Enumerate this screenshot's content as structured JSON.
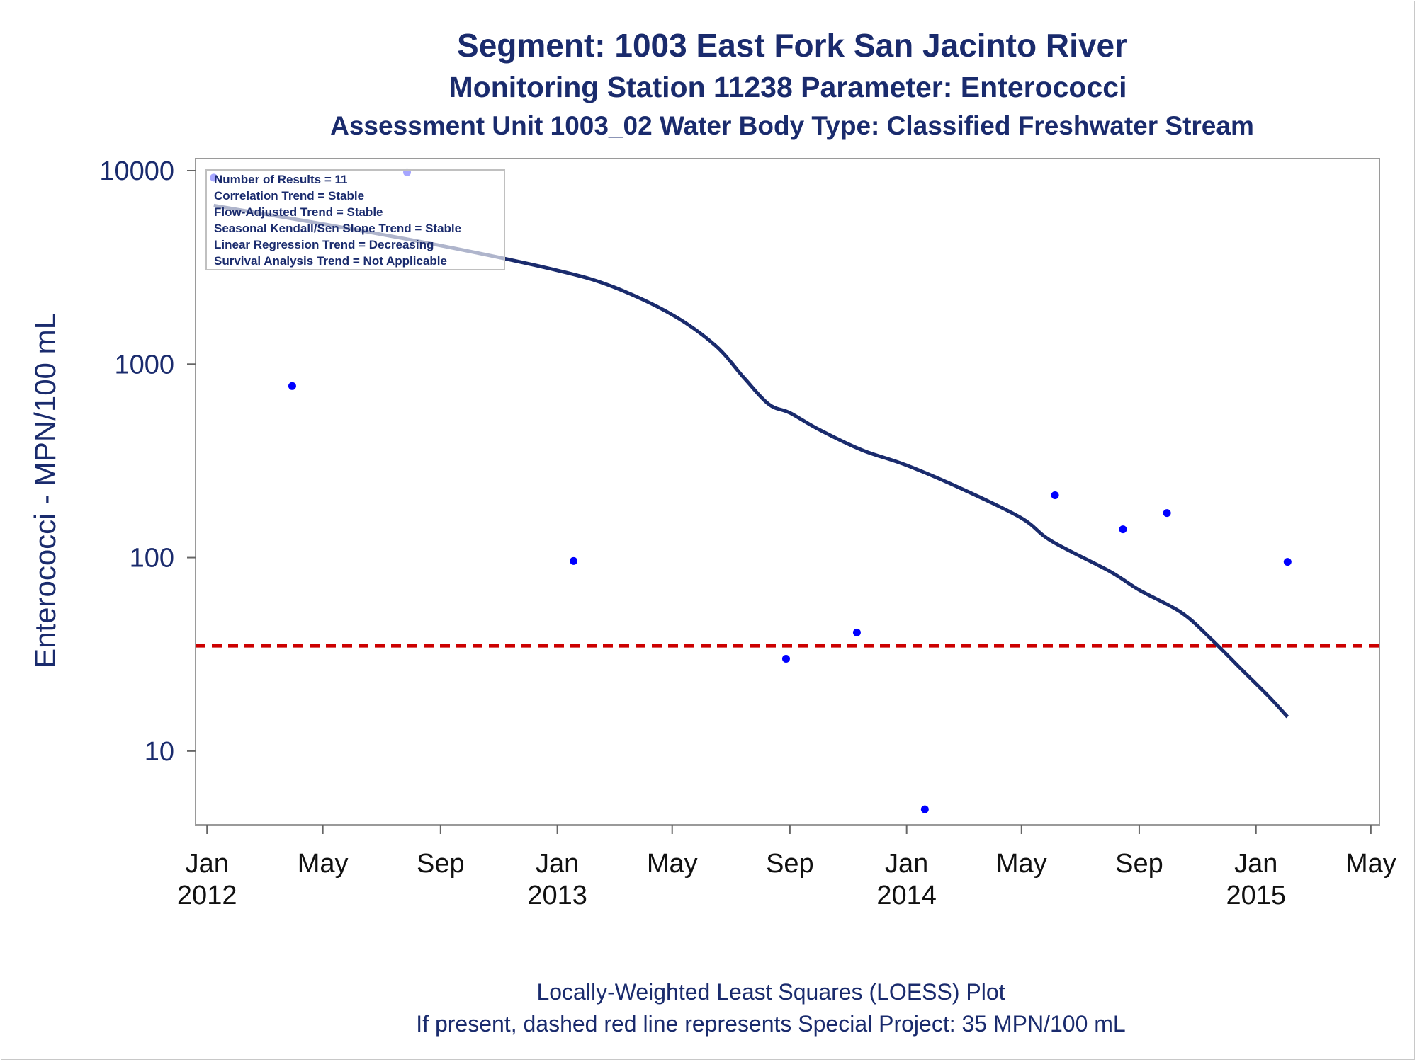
{
  "chart_data": {
    "type": "scatter",
    "title": "Segment: 1003  East Fork San Jacinto River",
    "subtitle": "Monitoring Station 11238 Parameter: Enterococci",
    "subtitle2": "Assessment Unit 1003_02   Water Body Type: Classified Freshwater Stream",
    "ylabel": "Enterococci - MPN/100 mL",
    "y_scale": "log",
    "ylim": [
      4.6,
      10000
    ],
    "y_ticks": [
      10,
      100,
      1000,
      10000
    ],
    "y_tick_labels": [
      "10",
      "100",
      "1000",
      "10000"
    ],
    "xlim": [
      "2011-12-20",
      "2015-05-10"
    ],
    "x_ticks": [
      {
        "date": "2012-01-01",
        "label": "Jan",
        "year": "2012"
      },
      {
        "date": "2012-05-01",
        "label": "May",
        "year": ""
      },
      {
        "date": "2012-09-01",
        "label": "Sep",
        "year": ""
      },
      {
        "date": "2013-01-01",
        "label": "Jan",
        "year": "2013"
      },
      {
        "date": "2013-05-01",
        "label": "May",
        "year": ""
      },
      {
        "date": "2013-09-01",
        "label": "Sep",
        "year": ""
      },
      {
        "date": "2014-01-01",
        "label": "Jan",
        "year": "2014"
      },
      {
        "date": "2014-05-01",
        "label": "May",
        "year": ""
      },
      {
        "date": "2014-09-01",
        "label": "Sep",
        "year": ""
      },
      {
        "date": "2015-01-01",
        "label": "Jan",
        "year": "2015"
      },
      {
        "date": "2015-05-01",
        "label": "May",
        "year": ""
      }
    ],
    "grid": false,
    "series": [
      {
        "kind": "points",
        "color": "#0000ff",
        "points": [
          {
            "x": "2012-01-08",
            "y": 9200
          },
          {
            "x": "2012-03-30",
            "y": 770
          },
          {
            "x": "2012-07-28",
            "y": 9800
          },
          {
            "x": "2013-01-18",
            "y": 96
          },
          {
            "x": "2013-08-28",
            "y": 30
          },
          {
            "x": "2013-11-10",
            "y": 41
          },
          {
            "x": "2014-01-20",
            "y": 5
          },
          {
            "x": "2014-06-05",
            "y": 210
          },
          {
            "x": "2014-08-15",
            "y": 140
          },
          {
            "x": "2014-09-30",
            "y": 170
          },
          {
            "x": "2015-02-03",
            "y": 95
          }
        ]
      },
      {
        "kind": "loess",
        "color": "#1a2b6d",
        "points": [
          {
            "x": "2012-01-08",
            "y": 6600
          },
          {
            "x": "2012-05-01",
            "y": 5300
          },
          {
            "x": "2012-09-01",
            "y": 4100
          },
          {
            "x": "2013-01-01",
            "y": 3050
          },
          {
            "x": "2013-03-01",
            "y": 2500
          },
          {
            "x": "2013-05-01",
            "y": 1800
          },
          {
            "x": "2013-06-15",
            "y": 1250
          },
          {
            "x": "2013-07-15",
            "y": 850
          },
          {
            "x": "2013-08-10",
            "y": 620
          },
          {
            "x": "2013-09-01",
            "y": 560
          },
          {
            "x": "2013-10-01",
            "y": 460
          },
          {
            "x": "2013-11-15",
            "y": 360
          },
          {
            "x": "2014-01-01",
            "y": 300
          },
          {
            "x": "2014-03-01",
            "y": 225
          },
          {
            "x": "2014-05-01",
            "y": 160
          },
          {
            "x": "2014-06-01",
            "y": 122
          },
          {
            "x": "2014-08-01",
            "y": 85
          },
          {
            "x": "2014-09-01",
            "y": 68
          },
          {
            "x": "2014-10-15",
            "y": 52
          },
          {
            "x": "2014-11-15",
            "y": 38
          },
          {
            "x": "2014-12-15",
            "y": 27
          },
          {
            "x": "2015-01-15",
            "y": 19
          },
          {
            "x": "2015-02-03",
            "y": 15
          }
        ]
      }
    ],
    "reference_line": {
      "y": 35,
      "color": "#cc0000",
      "style": "dashed"
    },
    "legend": {
      "placement": "top-left",
      "lines": [
        "Number of Results = 11",
        "Correlation Trend = Stable",
        "Flow-Adjusted Trend = Stable",
        "Seasonal Kendall/Sen Slope Trend = Stable",
        "Linear Regression Trend = Decreasing",
        "Survival Analysis Trend = Not Applicable"
      ]
    },
    "footnotes": [
      "Locally-Weighted Least Squares (LOESS) Plot",
      "If present, dashed red line represents Special Project: 35 MPN/100 mL"
    ]
  }
}
